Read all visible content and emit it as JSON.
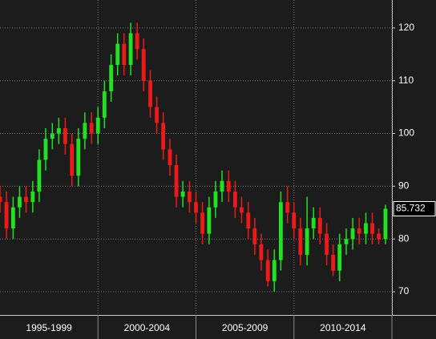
{
  "chart_data": {
    "type": "candlestick",
    "x": [
      1995,
      1995.33,
      1995.67,
      1996,
      1996.33,
      1996.67,
      1997,
      1997.33,
      1997.67,
      1998,
      1998.33,
      1998.67,
      1999,
      1999.33,
      1999.67,
      2000,
      2000.33,
      2000.67,
      2001,
      2001.33,
      2001.67,
      2002,
      2002.33,
      2002.67,
      2003,
      2003.33,
      2003.67,
      2004,
      2004.33,
      2004.67,
      2005,
      2005.33,
      2005.67,
      2006,
      2006.33,
      2006.67,
      2007,
      2007.33,
      2007.67,
      2008,
      2008.33,
      2008.67,
      2009,
      2009.33,
      2009.67,
      2010,
      2010.33,
      2010.67,
      2011,
      2011.33,
      2011.67,
      2012,
      2012.33,
      2012.67,
      2013,
      2013.33,
      2013.67,
      2014,
      2014.33,
      2014.67
    ],
    "open": [
      88,
      87,
      82,
      86,
      88,
      87,
      89,
      95,
      99,
      100,
      101,
      98,
      92,
      99,
      102,
      100,
      103,
      108,
      113,
      117,
      113,
      119,
      116,
      110,
      105,
      102,
      97,
      94,
      88,
      89,
      87,
      85,
      81,
      86,
      89,
      91,
      89,
      86,
      85,
      82,
      79,
      76,
      72,
      76,
      87,
      85,
      82,
      77,
      82,
      84,
      81,
      77,
      74,
      79,
      80,
      82,
      81,
      83,
      81,
      80
    ],
    "close": [
      87,
      82,
      86,
      88,
      87,
      89,
      95,
      99,
      100,
      101,
      98,
      92,
      99,
      102,
      100,
      103,
      108,
      113,
      117,
      113,
      119,
      116,
      110,
      105,
      102,
      97,
      94,
      88,
      89,
      87,
      85,
      81,
      86,
      89,
      91,
      89,
      86,
      85,
      82,
      79,
      76,
      72,
      76,
      87,
      85,
      82,
      77,
      82,
      84,
      81,
      77,
      74,
      79,
      80,
      82,
      81,
      83,
      81,
      80,
      85.732
    ],
    "high": [
      90,
      89,
      88,
      90,
      90,
      91,
      97,
      101,
      102,
      103,
      103,
      100,
      101,
      104,
      104,
      105,
      110,
      115,
      119,
      119,
      121,
      121,
      118,
      112,
      107,
      104,
      99,
      96,
      91,
      91,
      89,
      87,
      88,
      91,
      93,
      93,
      91,
      88,
      87,
      84,
      81,
      78,
      78,
      89,
      90,
      87,
      84,
      88,
      86,
      86,
      83,
      79,
      81,
      82,
      84,
      84,
      85,
      85,
      82,
      86.5
    ],
    "low": [
      85,
      80,
      80,
      84,
      85,
      85,
      87,
      93,
      97,
      98,
      96,
      90,
      90,
      97,
      98,
      98,
      101,
      106,
      111,
      111,
      111,
      114,
      108,
      103,
      100,
      95,
      92,
      86,
      86,
      85,
      83,
      79,
      79,
      84,
      87,
      87,
      84,
      83,
      80,
      77,
      74,
      71,
      70,
      74,
      83,
      80,
      75,
      75,
      80,
      79,
      75,
      73,
      72,
      77,
      78,
      79,
      79,
      79,
      79,
      79
    ],
    "last_label": "85.732",
    "up_color": "#22e022",
    "down_color": "#ee1a1a",
    "period_labels": [
      "1995-1999",
      "2000-2004",
      "2005-2009",
      "2010-2014"
    ],
    "xlim": [
      1995,
      2015
    ],
    "xticks": [
      2000,
      2005,
      2010,
      2015
    ],
    "ylim": [
      65.6,
      125.3
    ],
    "yticks": [
      70,
      80,
      90,
      100,
      110,
      120
    ],
    "grid": true
  }
}
